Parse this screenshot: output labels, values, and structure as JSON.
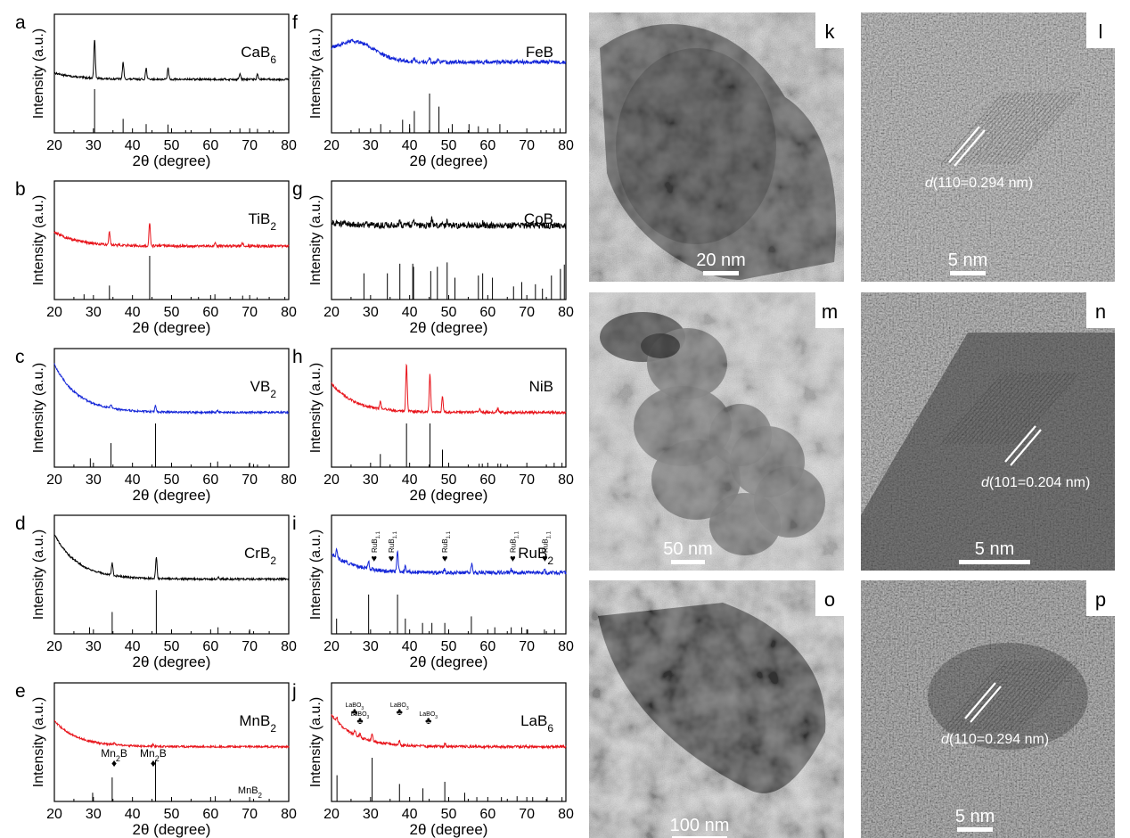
{
  "colors": {
    "black": "#000000",
    "red": "#e8141b",
    "blue": "#1426d8"
  },
  "xrd_panels": [
    {
      "letter": "a",
      "material": "CaB",
      "subscript": "6",
      "color": "black",
      "xlabel": "2θ (degree)",
      "ylabel": "Intensity (a.u.)",
      "xticks": [
        "20",
        "30",
        "40",
        "50",
        "60",
        "70",
        "80"
      ],
      "xlim": [
        20,
        80
      ],
      "profile": {
        "baseline": [
          0.28,
          0.18
        ],
        "broad": [],
        "peaks": [
          [
            30.3,
            0.62
          ],
          [
            37.6,
            0.26
          ],
          [
            43.5,
            0.17
          ],
          [
            49.1,
            0.17
          ],
          [
            67.5,
            0.09
          ],
          [
            72.0,
            0.08
          ]
        ],
        "noise": 0.015
      },
      "reference_lines": [
        [
          30.3,
          1.0
        ],
        [
          37.6,
          0.32
        ],
        [
          43.5,
          0.2
        ],
        [
          49.1,
          0.19
        ],
        [
          53.6,
          0.06
        ],
        [
          67.5,
          0.1
        ],
        [
          72.0,
          0.09
        ],
        [
          76.0,
          0.05
        ]
      ]
    },
    {
      "letter": "b",
      "material": "TiB",
      "subscript": "2",
      "color": "red",
      "xlabel": "2θ (degree)",
      "ylabel": "Intensity (a.u.)",
      "xticks": [
        "20",
        "30",
        "40",
        "50",
        "60",
        "70",
        "80"
      ],
      "xlim": [
        20,
        80
      ],
      "profile": {
        "baseline": [
          0.4,
          0.18
        ],
        "broad": [],
        "peaks": [
          [
            34.1,
            0.2
          ],
          [
            44.4,
            0.36
          ],
          [
            61.1,
            0.06
          ],
          [
            68.2,
            0.05
          ]
        ],
        "noise": 0.02
      },
      "reference_lines": [
        [
          27.6,
          0.12
        ],
        [
          34.1,
          0.32
        ],
        [
          44.4,
          1.0
        ],
        [
          56.9,
          0.06
        ],
        [
          61.1,
          0.12
        ],
        [
          68.2,
          0.09
        ],
        [
          71.9,
          0.05
        ],
        [
          79.0,
          0.06
        ]
      ]
    },
    {
      "letter": "c",
      "material": "VB",
      "subscript": "2",
      "color": "blue",
      "xlabel": "2θ (degree)",
      "ylabel": "Intensity (a.u.)",
      "xticks": [
        "20",
        "30",
        "40",
        "50",
        "60",
        "70",
        "80"
      ],
      "xlim": [
        20,
        80
      ],
      "profile": {
        "baseline": [
          0.95,
          0.2
        ],
        "broad": [],
        "peaks": [
          [
            34.5,
            0.06
          ],
          [
            45.9,
            0.1
          ],
          [
            61.8,
            0.03
          ]
        ],
        "noise": 0.015
      },
      "reference_lines": [
        [
          29.2,
          0.2
        ],
        [
          34.5,
          0.55
        ],
        [
          45.9,
          1.0
        ],
        [
          61.8,
          0.13
        ],
        [
          69.9,
          0.08
        ],
        [
          71.0,
          0.07
        ],
        [
          72.0,
          0.06
        ]
      ]
    },
    {
      "letter": "d",
      "material": "CrB",
      "subscript": "2",
      "color": "black",
      "xlabel": "2θ (degree)",
      "ylabel": "Intensity (a.u.)",
      "xticks": [
        "20",
        "30",
        "40",
        "50",
        "60",
        "70",
        "80"
      ],
      "xlim": [
        20,
        80
      ],
      "profile": {
        "baseline": [
          0.9,
          0.2
        ],
        "broad": [],
        "peaks": [
          [
            34.8,
            0.2
          ],
          [
            46.1,
            0.33
          ],
          [
            61.9,
            0.03
          ]
        ],
        "noise": 0.015
      },
      "reference_lines": [
        [
          29.0,
          0.15
        ],
        [
          34.8,
          0.5
        ],
        [
          46.1,
          1.0
        ],
        [
          61.9,
          0.15
        ],
        [
          69.9,
          0.07
        ],
        [
          71.0,
          0.06
        ]
      ]
    },
    {
      "letter": "e",
      "material": "MnB",
      "subscript": "2",
      "color": "red",
      "xlabel": "2θ (degree)",
      "ylabel": "Intensity (a.u.)",
      "xticks": [
        "20",
        "30",
        "40",
        "50",
        "60",
        "70",
        "80"
      ],
      "xlim": [
        20,
        80
      ],
      "profile": {
        "baseline": [
          0.6,
          0.2
        ],
        "broad": [],
        "peaks": [
          [
            35.3,
            0.03
          ],
          [
            45.3,
            0.03
          ]
        ],
        "noise": 0.015
      },
      "reference_lines": [
        [
          29.8,
          0.2
        ],
        [
          34.8,
          0.55
        ],
        [
          45.9,
          0.95
        ],
        [
          61.2,
          0.12
        ],
        [
          71.0,
          0.06
        ]
      ],
      "annotations": [
        {
          "text": "Mn",
          "sub": "2",
          "tail": "B",
          "marker": "♦",
          "x": 35.3
        },
        {
          "text": "Mn",
          "sub": "2",
          "tail": "B",
          "marker": "♦",
          "x": 45.3
        }
      ],
      "ref_label": {
        "text": "MnB",
        "sub": "2"
      }
    },
    {
      "letter": "f",
      "material": "FeB",
      "subscript": "",
      "color": "blue",
      "xlabel": "2θ (degree)",
      "ylabel": "Intensity (a.u.)",
      "xticks": [
        "20",
        "30",
        "40",
        "50",
        "60",
        "70",
        "80"
      ],
      "xlim": [
        20,
        80
      ],
      "profile": {
        "baseline": [
          0.52,
          0.45
        ],
        "broad": [
          [
            26,
            5,
            0.3
          ]
        ],
        "peaks": [
          [
            41.2,
            0.05
          ],
          [
            45.1,
            0.07
          ],
          [
            47.5,
            0.04
          ]
        ],
        "noise": 0.03
      },
      "reference_lines": [
        [
          27.1,
          0.1
        ],
        [
          32.6,
          0.2
        ],
        [
          38.2,
          0.3
        ],
        [
          40.0,
          0.2
        ],
        [
          41.2,
          0.5
        ],
        [
          45.1,
          0.9
        ],
        [
          47.5,
          0.6
        ],
        [
          50.9,
          0.2
        ],
        [
          55.2,
          0.2
        ],
        [
          57.6,
          0.15
        ],
        [
          63.1,
          0.2
        ],
        [
          73.6,
          0.06
        ],
        [
          77.0,
          0.1
        ],
        [
          78.5,
          0.1
        ]
      ]
    },
    {
      "letter": "g",
      "material": "CoB",
      "subscript": "",
      "color": "black",
      "xlabel": "2θ (degree)",
      "ylabel": "Intensity (a.u.)",
      "xticks": [
        "20",
        "30",
        "40",
        "50",
        "60",
        "70",
        "80"
      ],
      "xlim": [
        20,
        80
      ],
      "profile": {
        "baseline": [
          0.55,
          0.5
        ],
        "broad": [],
        "peaks": [
          [
            37.5,
            0.06
          ],
          [
            41.0,
            0.12
          ],
          [
            45.7,
            0.1
          ],
          [
            49.6,
            0.08
          ],
          [
            58.7,
            0.04
          ]
        ],
        "noise": 0.05
      },
      "reference_lines": [
        [
          28.3,
          0.6
        ],
        [
          34.3,
          0.6
        ],
        [
          37.5,
          0.82
        ],
        [
          40.8,
          0.82
        ],
        [
          41.0,
          0.75
        ],
        [
          45.4,
          0.65
        ],
        [
          47.1,
          0.75
        ],
        [
          49.6,
          0.85
        ],
        [
          51.6,
          0.5
        ],
        [
          57.6,
          0.55
        ],
        [
          58.7,
          0.6
        ],
        [
          61.2,
          0.5
        ],
        [
          66.6,
          0.3
        ],
        [
          68.7,
          0.4
        ],
        [
          72.2,
          0.35
        ],
        [
          74.0,
          0.25
        ],
        [
          76.3,
          0.55
        ],
        [
          78.6,
          0.7
        ],
        [
          79.6,
          0.8
        ]
      ]
    },
    {
      "letter": "h",
      "material": "NiB",
      "subscript": "",
      "color": "red",
      "xlabel": "2θ (degree)",
      "ylabel": "Intensity (a.u.)",
      "xticks": [
        "20",
        "30",
        "40",
        "50",
        "60",
        "70",
        "80"
      ],
      "xlim": [
        20,
        80
      ],
      "profile": {
        "baseline": [
          0.65,
          0.2
        ],
        "broad": [],
        "peaks": [
          [
            32.5,
            0.12
          ],
          [
            39.2,
            0.75
          ],
          [
            45.2,
            0.6
          ],
          [
            48.4,
            0.24
          ],
          [
            58.0,
            0.06
          ],
          [
            62.6,
            0.06
          ]
        ],
        "noise": 0.02
      },
      "reference_lines": [
        [
          32.5,
          0.3
        ],
        [
          39.2,
          1.0
        ],
        [
          45.2,
          1.0
        ],
        [
          48.4,
          0.4
        ],
        [
          57.8,
          0.08
        ],
        [
          58.6,
          0.08
        ],
        [
          62.6,
          0.08
        ],
        [
          63.3,
          0.08
        ],
        [
          77.0,
          0.1
        ],
        [
          79.0,
          0.1
        ]
      ]
    },
    {
      "letter": "i",
      "material": "RuB",
      "subscript": "2",
      "color": "blue",
      "xlabel": "2θ (degree)",
      "ylabel": "Intensity (a.u.)",
      "xticks": [
        "20",
        "30",
        "40",
        "50",
        "60",
        "70",
        "80"
      ],
      "xlim": [
        20,
        80
      ],
      "profile": {
        "baseline": [
          0.6,
          0.3
        ],
        "broad": [],
        "peaks": [
          [
            21.3,
            0.12
          ],
          [
            29.5,
            0.1
          ],
          [
            36.9,
            0.3
          ],
          [
            38.9,
            0.08
          ],
          [
            48.9,
            0.06
          ],
          [
            55.9,
            0.15
          ],
          [
            66.0,
            0.05
          ],
          [
            74.5,
            0.05
          ]
        ],
        "noise": 0.03
      },
      "reference_lines": [
        [
          21.3,
          0.35
        ],
        [
          29.5,
          0.9
        ],
        [
          36.9,
          0.9
        ],
        [
          38.9,
          0.35
        ],
        [
          43.3,
          0.25
        ],
        [
          45.7,
          0.25
        ],
        [
          49.0,
          0.25
        ],
        [
          55.8,
          0.4
        ],
        [
          61.8,
          0.15
        ],
        [
          66.0,
          0.15
        ],
        [
          68.7,
          0.15
        ],
        [
          70.2,
          0.1
        ],
        [
          74.5,
          0.1
        ],
        [
          77.1,
          0.1
        ]
      ],
      "annotations": [
        {
          "text": "RuB",
          "sub": "1.1",
          "tail": "",
          "marker": "♥",
          "x": 30.9
        },
        {
          "text": "RuB",
          "sub": "1.1",
          "tail": "",
          "marker": "♥",
          "x": 35.3
        },
        {
          "text": "RuB",
          "sub": "1.1",
          "tail": "",
          "marker": "♥",
          "x": 49.0
        },
        {
          "text": "RuB",
          "sub": "1.1",
          "tail": "",
          "marker": "♥",
          "x": 66.4
        },
        {
          "text": "RuB",
          "sub": "1.1",
          "tail": "",
          "marker": "♥",
          "x": 74.6
        }
      ]
    },
    {
      "letter": "j",
      "material": "LaB",
      "subscript": "6",
      "color": "red",
      "xlabel": "2θ (degree)",
      "ylabel": "Intensity (a.u.)",
      "xticks": [
        "20",
        "30",
        "40",
        "50",
        "60",
        "70",
        "80"
      ],
      "xlim": [
        20,
        80
      ],
      "profile": {
        "baseline": [
          0.7,
          0.2
        ],
        "broad": [],
        "peaks": [
          [
            21.4,
            0.05
          ],
          [
            26.0,
            0.07
          ],
          [
            27.3,
            0.05
          ],
          [
            30.4,
            0.12
          ],
          [
            37.4,
            0.06
          ],
          [
            43.4,
            0.03
          ],
          [
            49.1,
            0.04
          ]
        ],
        "noise": 0.02
      },
      "reference_lines": [
        [
          21.4,
          0.6
        ],
        [
          30.4,
          1.0
        ],
        [
          37.4,
          0.4
        ],
        [
          43.4,
          0.3
        ],
        [
          49.0,
          0.45
        ],
        [
          54.1,
          0.2
        ],
        [
          57.2,
          0.1
        ],
        [
          63.5,
          0.1
        ],
        [
          67.5,
          0.12
        ],
        [
          71.5,
          0.1
        ],
        [
          75.2,
          0.1
        ],
        [
          79.0,
          0.1
        ]
      ],
      "annotations": [
        {
          "text": "LaBO",
          "sub": "3",
          "tail": "",
          "marker": "♣",
          "x": 25.9
        },
        {
          "text": "LaBO",
          "sub": "3",
          "tail": "",
          "marker": "♣",
          "x": 27.3
        },
        {
          "text": "LaBO",
          "sub": "3",
          "tail": "",
          "marker": "♣",
          "x": 37.4
        },
        {
          "text": "LaBO",
          "sub": "3",
          "tail": "",
          "marker": "♣",
          "x": 44.8
        }
      ]
    }
  ],
  "tem_panels": [
    {
      "letter": "k",
      "scale_label": "20 nm",
      "lattice_label": "",
      "lattice_d": "",
      "tone": "dark-particle"
    },
    {
      "letter": "l",
      "scale_label": "5 nm",
      "lattice_label": "d",
      "lattice_d": "(110=0.294 nm)",
      "tone": "hrtem-light"
    },
    {
      "letter": "m",
      "scale_label": "50 nm",
      "lattice_label": "",
      "lattice_d": "",
      "tone": "aggregate"
    },
    {
      "letter": "n",
      "scale_label": "5 nm",
      "lattice_label": "d",
      "lattice_d": "(101=0.204 nm)",
      "tone": "hrtem-edge"
    },
    {
      "letter": "o",
      "scale_label": "100 nm",
      "lattice_label": "",
      "lattice_d": "",
      "tone": "particle-cloud"
    },
    {
      "letter": "p",
      "scale_label": "5 nm",
      "lattice_label": "d",
      "lattice_d": "(110=0.294 nm)",
      "tone": "hrtem-dark"
    }
  ],
  "chart_data": {
    "type": "line",
    "title": "",
    "xlabel": "2θ (degree)",
    "ylabel": "Intensity (a.u.)",
    "xlim": [
      20,
      80
    ],
    "series": [
      {
        "name": "CaB6"
      },
      {
        "name": "TiB2"
      },
      {
        "name": "VB2"
      },
      {
        "name": "CrB2"
      },
      {
        "name": "MnB2"
      },
      {
        "name": "FeB"
      },
      {
        "name": "CoB"
      },
      {
        "name": "NiB"
      },
      {
        "name": "RuB2"
      },
      {
        "name": "LaB6"
      }
    ]
  }
}
